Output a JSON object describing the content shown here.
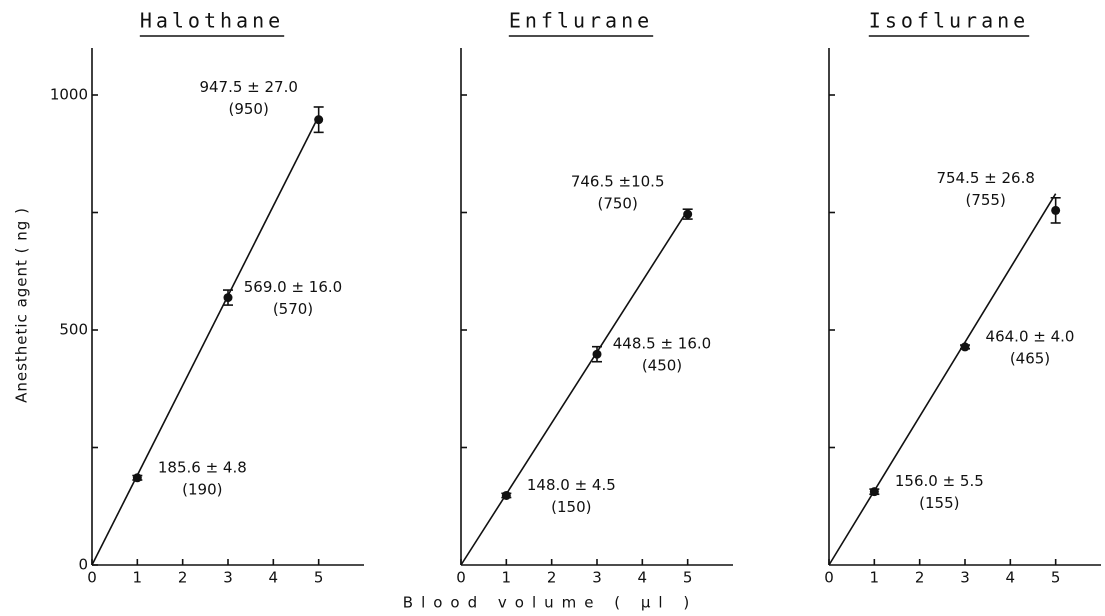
{
  "chart_data": [
    {
      "type": "scatter",
      "title": "Halothane",
      "ylabel": "Anesthetic agent ( ng )",
      "x": [
        1,
        3,
        5
      ],
      "values": [
        185.6,
        569.0,
        947.5
      ],
      "errors": [
        4.8,
        16.0,
        27.0
      ],
      "value_labels": [
        "185.6 ± 4.8",
        "569.0 ± 16.0",
        "947.5 ± 27.0"
      ],
      "expected_values": [
        190,
        570,
        950
      ],
      "expected_labels": [
        "(190)",
        "(570)",
        "(950)"
      ],
      "line": {
        "x": [
          0,
          5
        ],
        "values": [
          0,
          955
        ]
      },
      "xlim": [
        0,
        6
      ],
      "ylim": [
        0,
        1100
      ],
      "xticks": [
        0,
        1,
        2,
        3,
        4,
        5
      ],
      "yticks": [
        0,
        500,
        1000
      ],
      "minor_yticks": [
        250,
        750
      ]
    },
    {
      "type": "scatter",
      "title": "Enflurane",
      "xlabel": "Blood volume ( µl )",
      "x": [
        1,
        3,
        5
      ],
      "values": [
        148.0,
        448.5,
        746.5
      ],
      "errors": [
        4.5,
        16.0,
        10.5
      ],
      "value_labels": [
        "148.0 ± 4.5",
        "448.5 ± 16.0",
        "746.5 ±10.5"
      ],
      "expected_values": [
        150,
        450,
        750
      ],
      "expected_labels": [
        "(150)",
        "(450)",
        "(750)"
      ],
      "line": {
        "x": [
          0,
          5
        ],
        "values": [
          0,
          755
        ]
      },
      "xlim": [
        0,
        6
      ],
      "ylim": [
        0,
        1100
      ],
      "xticks": [
        0,
        1,
        2,
        3,
        4,
        5
      ],
      "yticks": [],
      "minor_yticks": [
        250,
        500,
        750,
        1000
      ]
    },
    {
      "type": "scatter",
      "title": "Isoflurane",
      "x": [
        1,
        3,
        5
      ],
      "values": [
        156.0,
        464.0,
        754.5
      ],
      "errors": [
        5.5,
        4.0,
        26.8
      ],
      "value_labels": [
        "156.0 ± 5.5",
        "464.0 ± 4.0",
        "754.5 ± 26.8"
      ],
      "expected_values": [
        155,
        465,
        755
      ],
      "expected_labels": [
        "(155)",
        "(465)",
        "(755)"
      ],
      "line": {
        "x": [
          0,
          5
        ],
        "values": [
          0,
          790
        ]
      },
      "xlim": [
        0,
        6
      ],
      "ylim": [
        0,
        1100
      ],
      "xticks": [
        0,
        1,
        2,
        3,
        4,
        5
      ],
      "yticks": [],
      "minor_yticks": [
        250,
        500,
        750,
        1000
      ]
    }
  ]
}
